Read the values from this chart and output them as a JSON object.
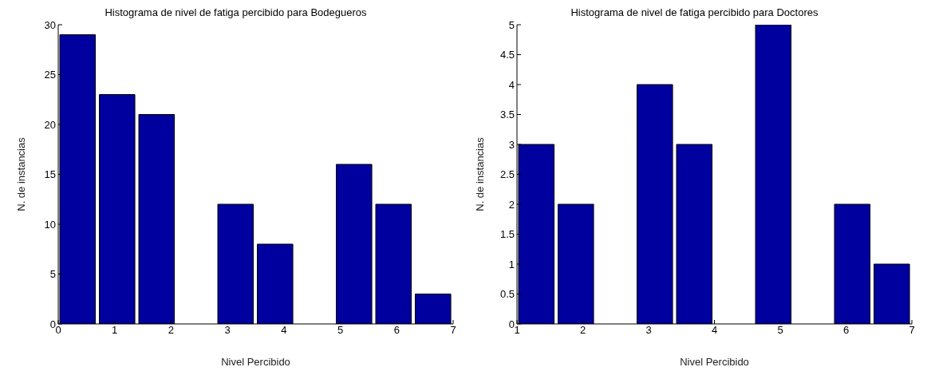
{
  "chart_data": [
    {
      "type": "histogram",
      "title": "Histograma de nivel de fatiga percibido para Bodegueros",
      "xlabel": "Nivel Percibido",
      "ylabel": "N. de instancias",
      "bins": [
        0,
        0.7,
        1.4,
        2.1,
        2.8,
        3.5,
        4.2,
        4.9,
        5.6,
        6.3,
        7
      ],
      "values": [
        29,
        23,
        21,
        0,
        12,
        8,
        0,
        16,
        12,
        3
      ],
      "color": "#00009f",
      "xlim": [
        0,
        7
      ],
      "xticks": [
        0,
        1,
        2,
        3,
        4,
        5,
        6,
        7
      ],
      "ylim": [
        0,
        30
      ],
      "yticks": [
        0,
        5,
        10,
        15,
        20,
        25,
        30
      ],
      "grid": false,
      "legend": false
    },
    {
      "type": "histogram",
      "title": "Histograma de nivel de fatiga percibido para Doctores",
      "xlabel": "Nivel Percibido",
      "ylabel": "N. de instancias",
      "bins": [
        1,
        1.6,
        2.2,
        2.8,
        3.4,
        4,
        4.6,
        5.2,
        5.8,
        6.4,
        7
      ],
      "values": [
        3,
        2,
        0,
        4,
        3,
        0,
        5,
        0,
        2,
        1
      ],
      "color": "#00009f",
      "xlim": [
        1,
        7
      ],
      "xticks": [
        1,
        2,
        3,
        4,
        5,
        6,
        7
      ],
      "ylim": [
        0,
        5
      ],
      "yticks": [
        0,
        0.5,
        1,
        1.5,
        2,
        2.5,
        3,
        3.5,
        4,
        4.5,
        5
      ],
      "grid": false,
      "legend": false
    }
  ]
}
